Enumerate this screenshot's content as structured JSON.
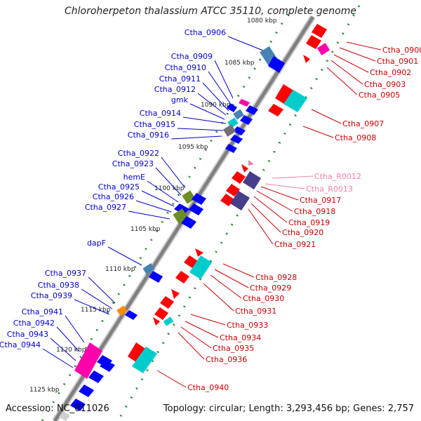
{
  "title": "Chloroherpeton thalassium ATCC 35110, complete genome",
  "accession": "Accession: NC_011026",
  "summary": "Topology: circular; Length: 3,293,456 bp; Genes: 2,757",
  "colors": {
    "left_label": "#0000cc",
    "right_label": "#cc0000",
    "rna_label": "#f080b0",
    "backbone": "#888888",
    "tick_dots": "#2a8a2a",
    "blue_feature": "#0000ff",
    "red_feature": "#ff0000",
    "cyan_feature": "#00cccc",
    "magenta_feature": "#ff00aa",
    "olive_feature": "#6b8e23",
    "steelblue_feature": "#4682b4",
    "purple_feature": "#483d8b",
    "orange_feature": "#ff8c00",
    "gray_feature": "#707070"
  },
  "scale_labels": [
    {
      "text": "1080 kbp",
      "kbp": 1080
    },
    {
      "text": "1085 kbp",
      "kbp": 1085
    },
    {
      "text": "1090 kbp",
      "kbp": 1090
    },
    {
      "text": "1095 kbp",
      "kbp": 1095
    },
    {
      "text": "1100 kbp",
      "kbp": 1100
    },
    {
      "text": "1105 kbp",
      "kbp": 1105
    },
    {
      "text": "1110 kbp",
      "kbp": 1110
    },
    {
      "text": "1115 kbp",
      "kbp": 1115
    },
    {
      "text": "1120 kbp",
      "kbp": 1120
    },
    {
      "text": "1125 kbp",
      "kbp": 1125
    }
  ],
  "left_genes": [
    {
      "name": "Ctha_0906"
    },
    {
      "name": "Ctha_0909"
    },
    {
      "name": "Ctha_0910"
    },
    {
      "name": "Ctha_0911"
    },
    {
      "name": "Ctha_0912"
    },
    {
      "name": "gmk"
    },
    {
      "name": "Ctha_0914"
    },
    {
      "name": "Ctha_0915"
    },
    {
      "name": "Ctha_0916"
    },
    {
      "name": "Ctha_0922"
    },
    {
      "name": "Ctha_0923"
    },
    {
      "name": "hemE"
    },
    {
      "name": "Ctha_0925"
    },
    {
      "name": "Ctha_0926"
    },
    {
      "name": "Ctha_0927"
    },
    {
      "name": "dapF"
    },
    {
      "name": "Ctha_0937"
    },
    {
      "name": "Ctha_0938"
    },
    {
      "name": "Ctha_0939"
    },
    {
      "name": "Ctha_0941"
    },
    {
      "name": "Ctha_0942"
    },
    {
      "name": "Ctha_0943"
    },
    {
      "name": "Ctha_0944"
    }
  ],
  "right_genes": [
    {
      "name": "Ctha_0900"
    },
    {
      "name": "Ctha_0901"
    },
    {
      "name": "Ctha_0902"
    },
    {
      "name": "Ctha_0903"
    },
    {
      "name": "Ctha_0905"
    },
    {
      "name": "Ctha_0907"
    },
    {
      "name": "Ctha_0908"
    },
    {
      "name": "Ctha_R0012"
    },
    {
      "name": "Ctha_R0013"
    },
    {
      "name": "Ctha_0917"
    },
    {
      "name": "Ctha_0918"
    },
    {
      "name": "Ctha_0919"
    },
    {
      "name": "Ctha_0920"
    },
    {
      "name": "Ctha_0921"
    },
    {
      "name": "Ctha_0928"
    },
    {
      "name": "Ctha_0929"
    },
    {
      "name": "Ctha_0930"
    },
    {
      "name": "Ctha_0931"
    },
    {
      "name": "Ctha_0933"
    },
    {
      "name": "Ctha_0934"
    },
    {
      "name": "Ctha_0935"
    },
    {
      "name": "Ctha_0936"
    },
    {
      "name": "Ctha_0940"
    }
  ]
}
